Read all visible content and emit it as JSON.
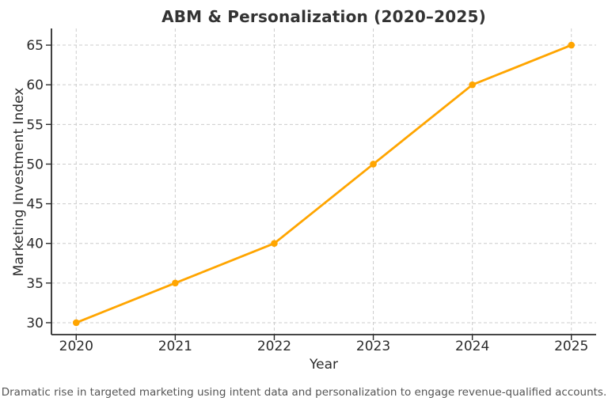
{
  "chart_data": {
    "type": "line",
    "title": "ABM & Personalization (2020–2025)",
    "xlabel": "Year",
    "ylabel": "Marketing Investment Index",
    "x": [
      2020,
      2021,
      2022,
      2023,
      2024,
      2025
    ],
    "x_tick_labels": [
      "2020",
      "2021",
      "2022",
      "2023",
      "2024",
      "2025"
    ],
    "y_ticks": [
      30,
      35,
      40,
      45,
      50,
      55,
      60,
      65
    ],
    "series": [
      {
        "name": "Marketing Investment Index",
        "values": [
          30,
          35,
          40,
          50,
          60,
          65
        ],
        "color": "#FFA500",
        "marker": "circle"
      }
    ],
    "xlim": [
      2019.75,
      2025.25
    ],
    "ylim": [
      28.5,
      67.1
    ],
    "grid": true,
    "grid_style": "dashed",
    "legend_position": "none"
  },
  "caption": {
    "text": "Dramatic rise in targeted marketing using intent data and personalization to engage revenue-qualified accounts."
  },
  "colors": {
    "accent": "#FFA500",
    "title": "#333333",
    "tick_label": "#2b2b2b",
    "grid": "#cccccc",
    "spine": "#2b2b2b",
    "caption": "#555555",
    "background": "#ffffff"
  }
}
